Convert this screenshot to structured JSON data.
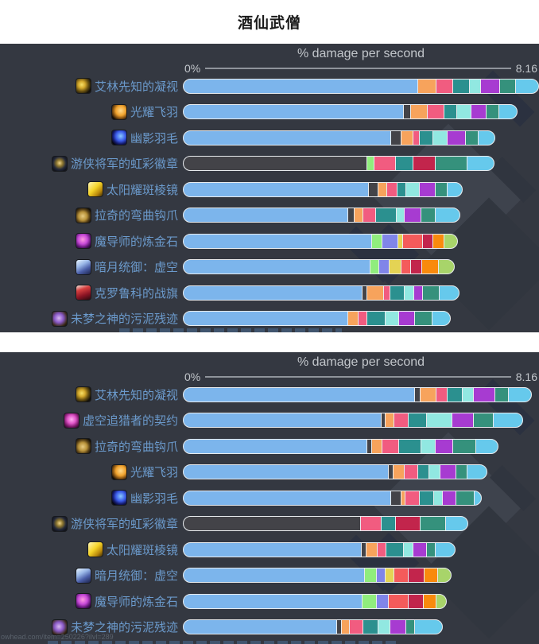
{
  "page": {
    "title": "酒仙武僧",
    "watermark_link": "owhead.com/item=250226?ilvl=289"
  },
  "colors": {
    "panel_bg": "#343841",
    "label_text": "#6b9acc",
    "axis_text": "#c2c6cb",
    "bar_border": "#e7ebee",
    "bar_palette": {
      "blue": "#7cb5ec",
      "dark": "#434348",
      "orange": "#f7a35c",
      "pink": "#f15c80",
      "teal": "#2b908f",
      "mint": "#91e8e1",
      "purple": "#a73bd1",
      "teal2": "#35917c",
      "sky": "#66c9ec",
      "green": "#90ed7d",
      "periwinkle": "#8085e9",
      "yellow": "#e4d354",
      "salmon": "#f45b5b",
      "crimson": "#c2254c",
      "orange2": "#f98a0d",
      "ygreen": "#a8d46a"
    }
  },
  "chart_data": [
    {
      "type": "bar",
      "orientation": "horizontal",
      "title": "% damage per second",
      "axis_min_label": "0%",
      "axis_max_label": "8.16",
      "xlim": [
        0,
        8.16
      ],
      "legend": "none",
      "items": [
        {
          "name": "艾林先知的凝视",
          "icon": "trinket-eye-icon",
          "segments": [
            [
              "blue",
              5.46
            ],
            [
              "orange",
              0.4
            ],
            [
              "pink",
              0.37
            ],
            [
              "teal",
              0.37
            ],
            [
              "mint",
              0.24
            ],
            [
              "purple",
              0.44
            ],
            [
              "teal2",
              0.35
            ],
            [
              "sky",
              0.51
            ]
          ]
        },
        {
          "name": "光耀飞羽",
          "icon": "trinket-radiant-feather-icon",
          "segments": [
            [
              "blue",
              5.07
            ],
            [
              "dark",
              0.15
            ],
            [
              "orange",
              0.37
            ],
            [
              "pink",
              0.37
            ],
            [
              "teal",
              0.28
            ],
            [
              "mint",
              0.31
            ],
            [
              "purple",
              0.33
            ],
            [
              "teal2",
              0.28
            ],
            [
              "sky",
              0.4
            ]
          ]
        },
        {
          "name": "幽影羽毛",
          "icon": "trinket-shadow-feather-icon",
          "segments": [
            [
              "blue",
              4.78
            ],
            [
              "dark",
              0.22
            ],
            [
              "orange",
              0.26
            ],
            [
              "pink",
              0.13
            ],
            [
              "teal",
              0.29
            ],
            [
              "mint",
              0.31
            ],
            [
              "purple",
              0.4
            ],
            [
              "teal2",
              0.28
            ],
            [
              "sky",
              0.37
            ]
          ]
        },
        {
          "name": "游侠将军的虹彩徽章",
          "icon": "trinket-ranger-badge-icon",
          "segments": [
            [
              "dark",
              4.23
            ],
            [
              "green",
              0.15
            ],
            [
              "pink",
              0.48
            ],
            [
              "teal",
              0.39
            ],
            [
              "crimson",
              0.5
            ],
            [
              "teal2",
              0.72
            ],
            [
              "sky",
              0.61
            ]
          ]
        },
        {
          "name": "太阳耀斑棱镜",
          "icon": "trinket-sunflare-prism-icon",
          "segments": [
            [
              "blue",
              4.26
            ],
            [
              "dark",
              0.2
            ],
            [
              "orange",
              0.18
            ],
            [
              "pink",
              0.22
            ],
            [
              "teal",
              0.18
            ],
            [
              "mint",
              0.29
            ],
            [
              "purple",
              0.35
            ],
            [
              "teal2",
              0.26
            ],
            [
              "sky",
              0.33
            ]
          ]
        },
        {
          "name": "拉奇的弯曲钩爪",
          "icon": "trinket-curved-hook-icon",
          "segments": [
            [
              "blue",
              3.79
            ],
            [
              "dark",
              0.13
            ],
            [
              "orange",
              0.18
            ],
            [
              "pink",
              0.28
            ],
            [
              "teal",
              0.46
            ],
            [
              "mint",
              0.17
            ],
            [
              "purple",
              0.37
            ],
            [
              "teal2",
              0.31
            ],
            [
              "sky",
              0.55
            ]
          ]
        },
        {
          "name": "魔导师的炼金石",
          "icon": "trinket-alchemist-stone-icon",
          "segments": [
            [
              "blue",
              4.34
            ],
            [
              "green",
              0.22
            ],
            [
              "periwinkle",
              0.35
            ],
            [
              "yellow",
              0.09
            ],
            [
              "salmon",
              0.44
            ],
            [
              "crimson",
              0.22
            ],
            [
              "orange2",
              0.24
            ],
            [
              "ygreen",
              0.29
            ]
          ]
        },
        {
          "name": "暗月统御：虚空",
          "icon": "trinket-darkmoon-void-icon",
          "segments": [
            [
              "blue",
              4.3
            ],
            [
              "green",
              0.18
            ],
            [
              "periwinkle",
              0.22
            ],
            [
              "yellow",
              0.26
            ],
            [
              "salmon",
              0.2
            ],
            [
              "crimson",
              0.24
            ],
            [
              "orange2",
              0.37
            ],
            [
              "ygreen",
              0.35
            ]
          ]
        },
        {
          "name": "克罗鲁科的战旗",
          "icon": "trinket-krolusk-banner-icon",
          "segments": [
            [
              "blue",
              4.12
            ],
            [
              "dark",
              0.09
            ],
            [
              "orange",
              0.37
            ],
            [
              "pink",
              0.13
            ],
            [
              "teal",
              0.31
            ],
            [
              "mint",
              0.2
            ],
            [
              "purple",
              0.18
            ],
            [
              "teal2",
              0.37
            ],
            [
              "sky",
              0.44
            ]
          ]
        },
        {
          "name": "未梦之神的污泥残迹",
          "icon": "trinket-sludge-remnant-icon",
          "segments": [
            [
              "blue",
              3.79
            ],
            [
              "orange",
              0.22
            ],
            [
              "pink",
              0.18
            ],
            [
              "teal",
              0.4
            ],
            [
              "mint",
              0.29
            ],
            [
              "purple",
              0.35
            ],
            [
              "teal2",
              0.39
            ],
            [
              "sky",
              0.4
            ]
          ]
        }
      ]
    },
    {
      "type": "bar",
      "orientation": "horizontal",
      "title": "% damage per second",
      "axis_min_label": "0%",
      "axis_max_label": "8.16",
      "xlim": [
        0,
        8.16
      ],
      "legend": "none",
      "items": [
        {
          "name": "艾林先知的凝视",
          "icon": "trinket-eye-icon",
          "segments": [
            [
              "blue",
              5.33
            ],
            [
              "dark",
              0.11
            ],
            [
              "orange",
              0.35
            ],
            [
              "pink",
              0.24
            ],
            [
              "teal",
              0.33
            ],
            [
              "mint",
              0.24
            ],
            [
              "purple",
              0.48
            ],
            [
              "teal2",
              0.29
            ],
            [
              "sky",
              0.51
            ]
          ]
        },
        {
          "name": "虚空追猎者的契约",
          "icon": "trinket-voidhunter-pact-icon",
          "segments": [
            [
              "blue",
              4.56
            ],
            [
              "dark",
              0.07
            ],
            [
              "orange",
              0.18
            ],
            [
              "pink",
              0.31
            ],
            [
              "teal",
              0.4
            ],
            [
              "mint",
              0.57
            ],
            [
              "purple",
              0.48
            ],
            [
              "teal2",
              0.44
            ],
            [
              "sky",
              0.66
            ]
          ]
        },
        {
          "name": "拉奇的弯曲钩爪",
          "icon": "trinket-curved-hook-icon",
          "segments": [
            [
              "blue",
              4.23
            ],
            [
              "dark",
              0.09
            ],
            [
              "orange",
              0.22
            ],
            [
              "pink",
              0.37
            ],
            [
              "teal",
              0.5
            ],
            [
              "mint",
              0.31
            ],
            [
              "purple",
              0.39
            ],
            [
              "teal2",
              0.51
            ],
            [
              "sky",
              0.5
            ]
          ]
        },
        {
          "name": "光耀飞羽",
          "icon": "trinket-radiant-feather-icon",
          "segments": [
            [
              "blue",
              4.72
            ],
            [
              "dark",
              0.09
            ],
            [
              "orange",
              0.24
            ],
            [
              "pink",
              0.29
            ],
            [
              "teal",
              0.24
            ],
            [
              "mint",
              0.24
            ],
            [
              "purple",
              0.35
            ],
            [
              "teal2",
              0.24
            ],
            [
              "sky",
              0.44
            ]
          ]
        },
        {
          "name": "幽影羽毛",
          "icon": "trinket-shadow-feather-icon",
          "segments": [
            [
              "blue",
              4.78
            ],
            [
              "dark",
              0.22
            ],
            [
              "orange",
              0.07
            ],
            [
              "pink",
              0.31
            ],
            [
              "teal",
              0.31
            ],
            [
              "mint",
              0.18
            ],
            [
              "purple",
              0.29
            ],
            [
              "teal2",
              0.4
            ],
            [
              "sky",
              0.15
            ]
          ]
        },
        {
          "name": "游侠将军的虹彩徽章",
          "icon": "trinket-ranger-badge-icon",
          "segments": [
            [
              "dark",
              4.08
            ],
            [
              "pink",
              0.46
            ],
            [
              "teal",
              0.31
            ],
            [
              "crimson",
              0.55
            ],
            [
              "teal2",
              0.57
            ],
            [
              "sky",
              0.5
            ]
          ]
        },
        {
          "name": "太阳耀斑棱镜",
          "icon": "trinket-sunflare-prism-icon",
          "segments": [
            [
              "blue",
              4.1
            ],
            [
              "dark",
              0.09
            ],
            [
              "orange",
              0.24
            ],
            [
              "pink",
              0.18
            ],
            [
              "teal",
              0.39
            ],
            [
              "mint",
              0.2
            ],
            [
              "purple",
              0.29
            ],
            [
              "teal2",
              0.18
            ],
            [
              "sky",
              0.44
            ]
          ]
        },
        {
          "name": "暗月统御：虚空",
          "icon": "trinket-darkmoon-void-icon",
          "segments": [
            [
              "blue",
              4.17
            ],
            [
              "green",
              0.26
            ],
            [
              "periwinkle",
              0.18
            ],
            [
              "yellow",
              0.18
            ],
            [
              "salmon",
              0.31
            ],
            [
              "crimson",
              0.35
            ],
            [
              "orange2",
              0.29
            ],
            [
              "ygreen",
              0.29
            ]
          ]
        },
        {
          "name": "魔导师的炼金石",
          "icon": "trinket-alchemist-stone-icon",
          "segments": [
            [
              "blue",
              4.12
            ],
            [
              "green",
              0.31
            ],
            [
              "periwinkle",
              0.26
            ],
            [
              "salmon",
              0.44
            ],
            [
              "crimson",
              0.33
            ],
            [
              "orange2",
              0.28
            ],
            [
              "ygreen",
              0.22
            ]
          ]
        },
        {
          "name": "未梦之神的污泥残迹",
          "icon": "trinket-sludge-remnant-icon",
          "segments": [
            [
              "blue",
              3.53
            ],
            [
              "dark",
              0.09
            ],
            [
              "orange",
              0.17
            ],
            [
              "pink",
              0.29
            ],
            [
              "teal",
              0.33
            ],
            [
              "mint",
              0.26
            ],
            [
              "purple",
              0.35
            ],
            [
              "teal2",
              0.18
            ],
            [
              "sky",
              0.63
            ]
          ]
        }
      ]
    }
  ]
}
